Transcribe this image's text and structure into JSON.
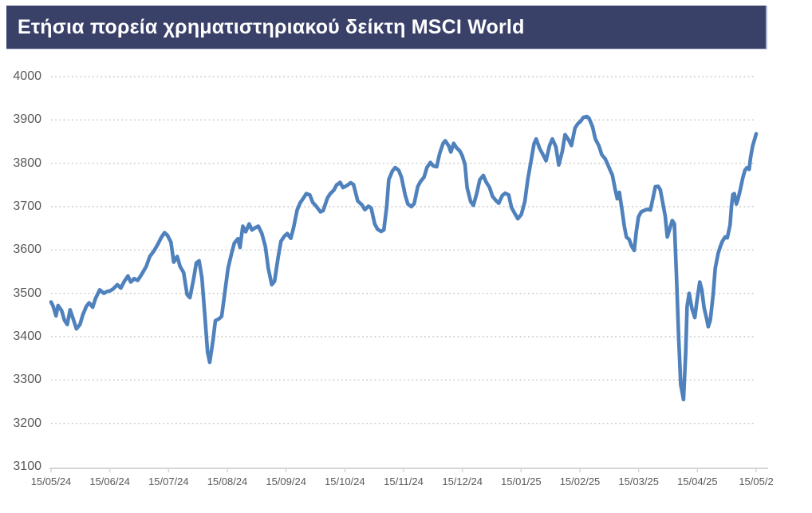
{
  "title": "Ετήσια πορεία χρηματιστηριακού δείκτη MSCI World",
  "colors": {
    "title_bar_bg": "#394169",
    "title_text": "#ffffff",
    "series_line": "#4F81BD",
    "grid_line": "#c7c7c7",
    "axis_line": "#d6d6d6",
    "tick_text": "#595959"
  },
  "chart_data": {
    "type": "line",
    "title": "Ετήσια πορεία χρηματιστηριακού δείκτη MSCI World",
    "series_name": "MSCI World",
    "xlabel": "",
    "ylabel": "",
    "ylim": [
      3100,
      4000
    ],
    "y_ticks": [
      3100,
      3200,
      3300,
      3400,
      3500,
      3600,
      3700,
      3800,
      3900,
      4000
    ],
    "x_tick_labels": [
      "15/05/24",
      "15/06/24",
      "15/07/24",
      "15/08/24",
      "15/09/24",
      "15/10/24",
      "15/11/24",
      "15/12/24",
      "15/01/25",
      "15/02/25",
      "15/03/25",
      "15/04/25",
      "15/05/2"
    ],
    "grid": "dotted horizontal gridlines, solid bottom axis",
    "legend_position": "none",
    "points_format": "[x_fraction_of_axis_0_to_1, index_value]",
    "points": [
      [
        0.0,
        3480
      ],
      [
        0.003,
        3470
      ],
      [
        0.007,
        3448
      ],
      [
        0.01,
        3472
      ],
      [
        0.015,
        3460
      ],
      [
        0.019,
        3438
      ],
      [
        0.023,
        3428
      ],
      [
        0.027,
        3462
      ],
      [
        0.032,
        3438
      ],
      [
        0.036,
        3418
      ],
      [
        0.041,
        3428
      ],
      [
        0.045,
        3450
      ],
      [
        0.05,
        3470
      ],
      [
        0.054,
        3478
      ],
      [
        0.059,
        3468
      ],
      [
        0.063,
        3488
      ],
      [
        0.069,
        3508
      ],
      [
        0.075,
        3500
      ],
      [
        0.079,
        3504
      ],
      [
        0.084,
        3506
      ],
      [
        0.088,
        3510
      ],
      [
        0.094,
        3520
      ],
      [
        0.099,
        3512
      ],
      [
        0.104,
        3528
      ],
      [
        0.109,
        3540
      ],
      [
        0.113,
        3526
      ],
      [
        0.118,
        3534
      ],
      [
        0.123,
        3530
      ],
      [
        0.129,
        3545
      ],
      [
        0.135,
        3562
      ],
      [
        0.14,
        3585
      ],
      [
        0.146,
        3598
      ],
      [
        0.152,
        3615
      ],
      [
        0.156,
        3628
      ],
      [
        0.161,
        3640
      ],
      [
        0.165,
        3634
      ],
      [
        0.17,
        3618
      ],
      [
        0.174,
        3572
      ],
      [
        0.179,
        3585
      ],
      [
        0.183,
        3562
      ],
      [
        0.188,
        3548
      ],
      [
        0.193,
        3497
      ],
      [
        0.197,
        3490
      ],
      [
        0.202,
        3532
      ],
      [
        0.206,
        3570
      ],
      [
        0.21,
        3575
      ],
      [
        0.214,
        3535
      ],
      [
        0.219,
        3430
      ],
      [
        0.222,
        3365
      ],
      [
        0.225,
        3341
      ],
      [
        0.23,
        3395
      ],
      [
        0.233,
        3437
      ],
      [
        0.238,
        3441
      ],
      [
        0.242,
        3447
      ],
      [
        0.247,
        3508
      ],
      [
        0.251,
        3558
      ],
      [
        0.256,
        3592
      ],
      [
        0.26,
        3616
      ],
      [
        0.265,
        3626
      ],
      [
        0.268,
        3606
      ],
      [
        0.272,
        3655
      ],
      [
        0.276,
        3642
      ],
      [
        0.281,
        3660
      ],
      [
        0.285,
        3646
      ],
      [
        0.29,
        3652
      ],
      [
        0.294,
        3655
      ],
      [
        0.299,
        3638
      ],
      [
        0.304,
        3608
      ],
      [
        0.308,
        3558
      ],
      [
        0.313,
        3520
      ],
      [
        0.317,
        3528
      ],
      [
        0.322,
        3582
      ],
      [
        0.326,
        3620
      ],
      [
        0.331,
        3632
      ],
      [
        0.335,
        3638
      ],
      [
        0.34,
        3627
      ],
      [
        0.344,
        3652
      ],
      [
        0.349,
        3692
      ],
      [
        0.353,
        3708
      ],
      [
        0.358,
        3720
      ],
      [
        0.362,
        3730
      ],
      [
        0.367,
        3727
      ],
      [
        0.371,
        3710
      ],
      [
        0.376,
        3701
      ],
      [
        0.382,
        3688
      ],
      [
        0.386,
        3691
      ],
      [
        0.392,
        3720
      ],
      [
        0.396,
        3730
      ],
      [
        0.401,
        3738
      ],
      [
        0.405,
        3750
      ],
      [
        0.41,
        3756
      ],
      [
        0.414,
        3744
      ],
      [
        0.419,
        3748
      ],
      [
        0.425,
        3755
      ],
      [
        0.429,
        3751
      ],
      [
        0.435,
        3713
      ],
      [
        0.441,
        3704
      ],
      [
        0.445,
        3693
      ],
      [
        0.45,
        3701
      ],
      [
        0.454,
        3697
      ],
      [
        0.459,
        3660
      ],
      [
        0.463,
        3648
      ],
      [
        0.468,
        3643
      ],
      [
        0.472,
        3646
      ],
      [
        0.476,
        3700
      ],
      [
        0.479,
        3762
      ],
      [
        0.484,
        3782
      ],
      [
        0.488,
        3790
      ],
      [
        0.493,
        3784
      ],
      [
        0.497,
        3768
      ],
      [
        0.502,
        3728
      ],
      [
        0.506,
        3706
      ],
      [
        0.511,
        3700
      ],
      [
        0.515,
        3707
      ],
      [
        0.52,
        3746
      ],
      [
        0.524,
        3758
      ],
      [
        0.529,
        3768
      ],
      [
        0.533,
        3790
      ],
      [
        0.538,
        3802
      ],
      [
        0.542,
        3794
      ],
      [
        0.547,
        3792
      ],
      [
        0.551,
        3822
      ],
      [
        0.556,
        3846
      ],
      [
        0.559,
        3852
      ],
      [
        0.564,
        3840
      ],
      [
        0.567,
        3826
      ],
      [
        0.571,
        3846
      ],
      [
        0.575,
        3836
      ],
      [
        0.58,
        3828
      ],
      [
        0.583,
        3818
      ],
      [
        0.587,
        3798
      ],
      [
        0.59,
        3744
      ],
      [
        0.595,
        3712
      ],
      [
        0.599,
        3703
      ],
      [
        0.604,
        3732
      ],
      [
        0.608,
        3762
      ],
      [
        0.613,
        3772
      ],
      [
        0.617,
        3757
      ],
      [
        0.622,
        3744
      ],
      [
        0.626,
        3724
      ],
      [
        0.631,
        3714
      ],
      [
        0.635,
        3708
      ],
      [
        0.64,
        3726
      ],
      [
        0.644,
        3731
      ],
      [
        0.649,
        3727
      ],
      [
        0.653,
        3698
      ],
      [
        0.658,
        3683
      ],
      [
        0.662,
        3672
      ],
      [
        0.667,
        3682
      ],
      [
        0.672,
        3712
      ],
      [
        0.676,
        3762
      ],
      [
        0.681,
        3808
      ],
      [
        0.685,
        3845
      ],
      [
        0.688,
        3856
      ],
      [
        0.693,
        3834
      ],
      [
        0.698,
        3819
      ],
      [
        0.702,
        3806
      ],
      [
        0.707,
        3841
      ],
      [
        0.711,
        3856
      ],
      [
        0.716,
        3838
      ],
      [
        0.72,
        3796
      ],
      [
        0.725,
        3827
      ],
      [
        0.729,
        3866
      ],
      [
        0.734,
        3854
      ],
      [
        0.738,
        3841
      ],
      [
        0.743,
        3881
      ],
      [
        0.747,
        3891
      ],
      [
        0.751,
        3897
      ],
      [
        0.755,
        3906
      ],
      [
        0.76,
        3908
      ],
      [
        0.763,
        3904
      ],
      [
        0.768,
        3884
      ],
      [
        0.772,
        3856
      ],
      [
        0.777,
        3840
      ],
      [
        0.781,
        3820
      ],
      [
        0.786,
        3810
      ],
      [
        0.789,
        3799
      ],
      [
        0.793,
        3784
      ],
      [
        0.796,
        3773
      ],
      [
        0.8,
        3740
      ],
      [
        0.803,
        3718
      ],
      [
        0.806,
        3733
      ],
      [
        0.81,
        3690
      ],
      [
        0.813,
        3655
      ],
      [
        0.816,
        3630
      ],
      [
        0.82,
        3624
      ],
      [
        0.823,
        3610
      ],
      [
        0.827,
        3599
      ],
      [
        0.83,
        3642
      ],
      [
        0.833,
        3676
      ],
      [
        0.837,
        3688
      ],
      [
        0.841,
        3691
      ],
      [
        0.846,
        3694
      ],
      [
        0.85,
        3692
      ],
      [
        0.854,
        3722
      ],
      [
        0.857,
        3746
      ],
      [
        0.861,
        3747
      ],
      [
        0.864,
        3739
      ],
      [
        0.867,
        3714
      ],
      [
        0.871,
        3678
      ],
      [
        0.874,
        3630
      ],
      [
        0.878,
        3652
      ],
      [
        0.881,
        3668
      ],
      [
        0.884,
        3660
      ],
      [
        0.887,
        3540
      ],
      [
        0.89,
        3400
      ],
      [
        0.893,
        3290
      ],
      [
        0.897,
        3255
      ],
      [
        0.9,
        3360
      ],
      [
        0.902,
        3470
      ],
      [
        0.905,
        3500
      ],
      [
        0.907,
        3481
      ],
      [
        0.909,
        3464
      ],
      [
        0.913,
        3444
      ],
      [
        0.916,
        3482
      ],
      [
        0.92,
        3526
      ],
      [
        0.923,
        3508
      ],
      [
        0.926,
        3468
      ],
      [
        0.93,
        3440
      ],
      [
        0.932,
        3423
      ],
      [
        0.935,
        3438
      ],
      [
        0.939,
        3498
      ],
      [
        0.942,
        3558
      ],
      [
        0.946,
        3592
      ],
      [
        0.949,
        3607
      ],
      [
        0.952,
        3620
      ],
      [
        0.956,
        3630
      ],
      [
        0.959,
        3628
      ],
      [
        0.963,
        3658
      ],
      [
        0.965,
        3702
      ],
      [
        0.967,
        3728
      ],
      [
        0.969,
        3730
      ],
      [
        0.972,
        3706
      ],
      [
        0.974,
        3716
      ],
      [
        0.977,
        3736
      ],
      [
        0.981,
        3766
      ],
      [
        0.984,
        3784
      ],
      [
        0.987,
        3790
      ],
      [
        0.99,
        3786
      ],
      [
        0.992,
        3812
      ],
      [
        0.995,
        3840
      ],
      [
        0.998,
        3856
      ],
      [
        1.0,
        3868
      ]
    ]
  }
}
